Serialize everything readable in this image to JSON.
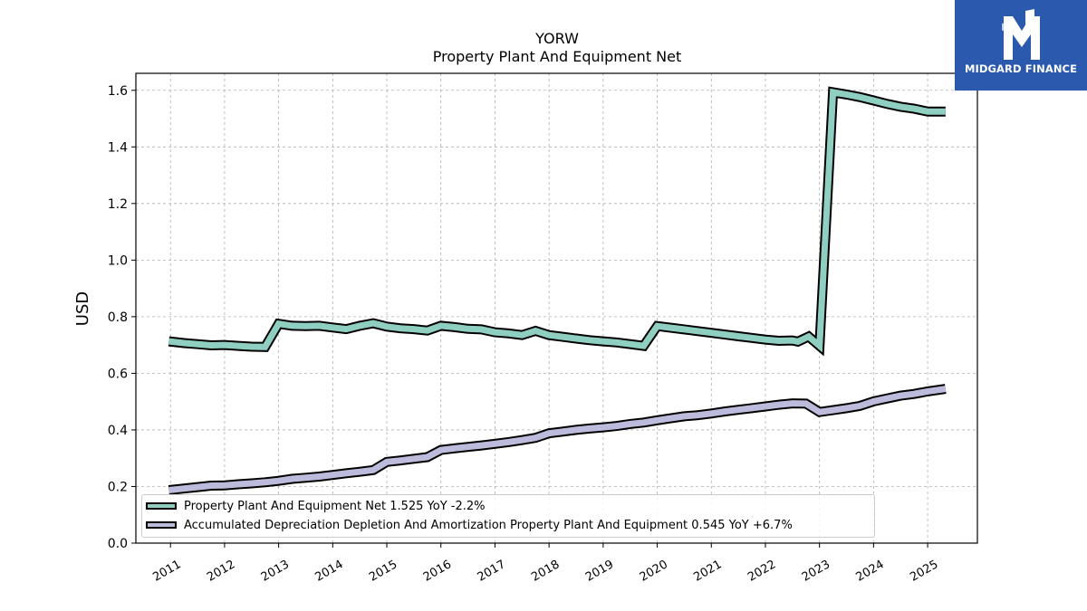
{
  "chart_data": {
    "type": "line",
    "title": "YORW",
    "subtitle": "Property Plant And Equipment Net",
    "xlabel": "",
    "ylabel": "USD",
    "ylim": [
      0,
      1.66
    ],
    "yticks": [
      "0.0",
      "0.2",
      "0.4",
      "0.6",
      "0.8",
      "1.0",
      "1.2",
      "1.4",
      "1.6"
    ],
    "ytick_values": [
      0,
      0.2,
      0.4,
      0.6,
      0.8,
      1.0,
      1.2,
      1.4,
      1.6
    ],
    "xticks": [
      "2011",
      "2012",
      "2013",
      "2014",
      "2015",
      "2016",
      "2017",
      "2018",
      "2019",
      "2020",
      "2021",
      "2022",
      "2023",
      "2024",
      "2025"
    ],
    "xlim": [
      2010.36,
      2025.92
    ],
    "grid": true,
    "legend_position": "bottom-left",
    "series": [
      {
        "name": "Property Plant And Equipment Net  1.525 YoY -2.2%",
        "color": "#8ecfc1",
        "points": [
          [
            2010.97,
            0.713
          ],
          [
            2011.25,
            0.707
          ],
          [
            2011.5,
            0.703
          ],
          [
            2011.75,
            0.699
          ],
          [
            2012.0,
            0.7
          ],
          [
            2012.25,
            0.697
          ],
          [
            2012.5,
            0.694
          ],
          [
            2012.75,
            0.693
          ],
          [
            2013.0,
            0.775
          ],
          [
            2013.25,
            0.768
          ],
          [
            2013.5,
            0.767
          ],
          [
            2013.75,
            0.768
          ],
          [
            2014.0,
            0.762
          ],
          [
            2014.25,
            0.756
          ],
          [
            2014.5,
            0.768
          ],
          [
            2014.75,
            0.777
          ],
          [
            2015.0,
            0.765
          ],
          [
            2015.25,
            0.759
          ],
          [
            2015.5,
            0.756
          ],
          [
            2015.75,
            0.751
          ],
          [
            2016.0,
            0.768
          ],
          [
            2016.25,
            0.763
          ],
          [
            2016.5,
            0.757
          ],
          [
            2016.75,
            0.755
          ],
          [
            2017.0,
            0.745
          ],
          [
            2017.25,
            0.741
          ],
          [
            2017.5,
            0.735
          ],
          [
            2017.75,
            0.75
          ],
          [
            2018.0,
            0.735
          ],
          [
            2018.25,
            0.729
          ],
          [
            2018.5,
            0.723
          ],
          [
            2018.75,
            0.717
          ],
          [
            2019.0,
            0.713
          ],
          [
            2019.25,
            0.709
          ],
          [
            2019.5,
            0.703
          ],
          [
            2019.75,
            0.697
          ],
          [
            2020.0,
            0.767
          ],
          [
            2020.25,
            0.761
          ],
          [
            2020.5,
            0.755
          ],
          [
            2020.75,
            0.749
          ],
          [
            2021.0,
            0.743
          ],
          [
            2021.25,
            0.737
          ],
          [
            2021.5,
            0.731
          ],
          [
            2021.75,
            0.725
          ],
          [
            2022.0,
            0.719
          ],
          [
            2022.25,
            0.715
          ],
          [
            2022.5,
            0.716
          ],
          [
            2022.6,
            0.712
          ],
          [
            2022.8,
            0.73
          ],
          [
            2023.0,
            0.697
          ],
          [
            2023.25,
            1.593
          ],
          [
            2023.5,
            1.585
          ],
          [
            2023.75,
            1.576
          ],
          [
            2024.0,
            1.564
          ],
          [
            2024.25,
            1.552
          ],
          [
            2024.5,
            1.542
          ],
          [
            2024.75,
            1.535
          ],
          [
            2025.0,
            1.525
          ],
          [
            2025.33,
            1.525
          ]
        ]
      },
      {
        "name": "Accumulated Depreciation Depletion And Amortization Property Plant And Equipment  0.545 YoY +6.7%",
        "color": "#bcbbdc",
        "points": [
          [
            2010.97,
            0.187
          ],
          [
            2011.25,
            0.193
          ],
          [
            2011.5,
            0.198
          ],
          [
            2011.75,
            0.203
          ],
          [
            2012.0,
            0.204
          ],
          [
            2012.25,
            0.208
          ],
          [
            2012.5,
            0.211
          ],
          [
            2012.75,
            0.215
          ],
          [
            2013.0,
            0.22
          ],
          [
            2013.25,
            0.227
          ],
          [
            2013.5,
            0.231
          ],
          [
            2013.75,
            0.235
          ],
          [
            2014.0,
            0.241
          ],
          [
            2014.25,
            0.247
          ],
          [
            2014.5,
            0.252
          ],
          [
            2014.75,
            0.258
          ],
          [
            2015.0,
            0.287
          ],
          [
            2015.25,
            0.292
          ],
          [
            2015.5,
            0.298
          ],
          [
            2015.75,
            0.304
          ],
          [
            2016.0,
            0.329
          ],
          [
            2016.25,
            0.335
          ],
          [
            2016.5,
            0.34
          ],
          [
            2016.75,
            0.345
          ],
          [
            2017.0,
            0.351
          ],
          [
            2017.25,
            0.357
          ],
          [
            2017.5,
            0.364
          ],
          [
            2017.75,
            0.372
          ],
          [
            2018.0,
            0.388
          ],
          [
            2018.25,
            0.394
          ],
          [
            2018.5,
            0.4
          ],
          [
            2018.75,
            0.405
          ],
          [
            2019.0,
            0.409
          ],
          [
            2019.25,
            0.414
          ],
          [
            2019.5,
            0.421
          ],
          [
            2019.75,
            0.426
          ],
          [
            2020.0,
            0.434
          ],
          [
            2020.25,
            0.441
          ],
          [
            2020.5,
            0.448
          ],
          [
            2020.75,
            0.452
          ],
          [
            2021.0,
            0.458
          ],
          [
            2021.25,
            0.465
          ],
          [
            2021.5,
            0.471
          ],
          [
            2021.75,
            0.477
          ],
          [
            2022.0,
            0.483
          ],
          [
            2022.25,
            0.489
          ],
          [
            2022.5,
            0.494
          ],
          [
            2022.75,
            0.493
          ],
          [
            2023.0,
            0.463
          ],
          [
            2023.25,
            0.47
          ],
          [
            2023.5,
            0.477
          ],
          [
            2023.75,
            0.485
          ],
          [
            2024.0,
            0.501
          ],
          [
            2024.25,
            0.511
          ],
          [
            2024.5,
            0.521
          ],
          [
            2024.75,
            0.527
          ],
          [
            2025.0,
            0.536
          ],
          [
            2025.33,
            0.545
          ]
        ]
      }
    ]
  },
  "logo": {
    "text": "MIDGARD FINANCE",
    "bg_color": "#2a59ad",
    "text_color": "#ffffff"
  }
}
